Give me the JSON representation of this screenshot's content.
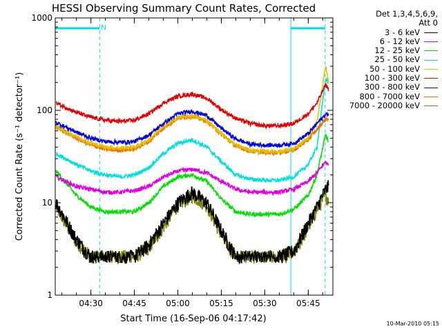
{
  "chart_data": {
    "type": "line",
    "title": "HESSI Observing Summary Count Rates, Corrected",
    "xlabel": "Start Time (16-Sep-06 04:17:42)",
    "ylabel": "Corrected Count Rate (s⁻¹ detector⁻¹)",
    "yscale": "log",
    "ylim": [
      1,
      1000
    ],
    "xlim": [
      "04:17:42",
      "05:53:30"
    ],
    "x_tick_labels": [
      "04:30",
      "04:45",
      "05:00",
      "05:15",
      "05:30",
      "05:45"
    ],
    "y_tick_labels": [
      "1",
      "10",
      "100",
      "1000"
    ],
    "legend_header": [
      "Det 1,3,4,5,6,9,",
      "Att 0"
    ],
    "legend_position": "right",
    "flag_label": "N",
    "night_intervals": [
      [
        "04:17:42",
        "04:33:00"
      ],
      [
        "05:39:00",
        "05:50:50"
      ]
    ],
    "series": [
      {
        "name": "3 - 6 keV",
        "color": "#000000",
        "x": [
          "04:18",
          "04:25",
          "04:30",
          "04:35",
          "04:40",
          "04:45",
          "04:50",
          "04:55",
          "05:00",
          "05:05",
          "05:10",
          "05:15",
          "05:20",
          "05:25",
          "05:30",
          "05:35",
          "05:40",
          "05:45",
          "05:48",
          "05:51",
          "05:52"
        ],
        "values": [
          10,
          4,
          2.6,
          2.6,
          2.6,
          2.6,
          3.5,
          6,
          10,
          13,
          10,
          5,
          2.6,
          2.6,
          2.6,
          2.6,
          3,
          6,
          9,
          14,
          15
        ]
      },
      {
        "name": "6 - 12 keV",
        "color": "#e000e0",
        "x": [
          "04:18",
          "04:25",
          "04:30",
          "04:35",
          "04:40",
          "04:45",
          "04:50",
          "04:55",
          "05:00",
          "05:05",
          "05:10",
          "05:15",
          "05:20",
          "05:25",
          "05:30",
          "05:35",
          "05:40",
          "05:45",
          "05:48",
          "05:51",
          "05:52"
        ],
        "values": [
          19,
          15,
          14,
          13,
          13,
          13.5,
          15,
          19,
          22,
          23,
          21,
          17,
          14,
          13,
          13,
          13,
          14,
          17,
          21,
          28,
          25
        ]
      },
      {
        "name": "12 - 25 keV",
        "color": "#00e000",
        "x": [
          "04:18",
          "04:25",
          "04:30",
          "04:35",
          "04:40",
          "04:45",
          "04:50",
          "04:55",
          "05:00",
          "05:05",
          "05:10",
          "05:15",
          "05:20",
          "05:25",
          "05:30",
          "05:35",
          "05:40",
          "05:45",
          "05:48",
          "05:51",
          "05:52"
        ],
        "values": [
          22,
          12,
          9,
          8,
          8,
          8,
          10,
          15,
          19,
          20,
          17,
          11,
          8,
          7.5,
          7.5,
          7.5,
          8.5,
          12,
          20,
          55,
          45
        ]
      },
      {
        "name": "25 - 50 keV",
        "color": "#00e0e0",
        "x": [
          "04:18",
          "04:25",
          "04:30",
          "04:35",
          "04:40",
          "04:45",
          "04:50",
          "04:55",
          "05:00",
          "05:05",
          "05:10",
          "05:15",
          "05:20",
          "05:25",
          "05:30",
          "05:35",
          "05:40",
          "05:45",
          "05:48",
          "05:51",
          "05:52"
        ],
        "values": [
          34,
          26,
          22,
          20,
          19,
          20,
          24,
          34,
          44,
          48,
          40,
          28,
          20,
          18,
          17.5,
          17.5,
          19,
          26,
          40,
          220,
          200
        ]
      },
      {
        "name": "50 - 100 keV",
        "color": "#e0c000",
        "x": [
          "04:18",
          "04:25",
          "04:30",
          "04:35",
          "04:40",
          "04:45",
          "04:50",
          "04:55",
          "05:00",
          "05:05",
          "05:10",
          "05:15",
          "05:20",
          "05:25",
          "05:30",
          "05:35",
          "05:40",
          "05:45",
          "05:48",
          "05:51",
          "05:52"
        ],
        "values": [
          66,
          52,
          44,
          40,
          39,
          40,
          48,
          66,
          84,
          88,
          78,
          56,
          42,
          37,
          36,
          36,
          38,
          50,
          75,
          300,
          200
        ]
      },
      {
        "name": "100 - 300 keV",
        "color": "#e00000",
        "x": [
          "04:18",
          "04:25",
          "04:30",
          "04:35",
          "04:40",
          "04:45",
          "04:50",
          "04:55",
          "05:00",
          "05:05",
          "05:10",
          "05:15",
          "05:20",
          "05:25",
          "05:30",
          "05:35",
          "05:40",
          "05:45",
          "05:48",
          "05:51",
          "05:52"
        ],
        "values": [
          120,
          95,
          84,
          78,
          76,
          78,
          92,
          120,
          142,
          150,
          135,
          102,
          82,
          72,
          68,
          68,
          72,
          92,
          120,
          190,
          170
        ]
      },
      {
        "name": "300 - 800 keV",
        "color": "#0000e0",
        "x": [
          "04:18",
          "04:25",
          "04:30",
          "04:35",
          "04:40",
          "04:45",
          "04:50",
          "04:55",
          "05:00",
          "05:05",
          "05:10",
          "05:15",
          "05:20",
          "05:25",
          "05:30",
          "05:35",
          "05:40",
          "05:45",
          "05:48",
          "05:51",
          "05:52"
        ],
        "values": [
          74,
          58,
          50,
          46,
          45,
          46,
          54,
          72,
          92,
          98,
          88,
          64,
          49,
          43,
          42,
          42,
          44,
          56,
          72,
          90,
          92
        ]
      },
      {
        "name": "800 - 7000 keV",
        "color": "#f07000",
        "x": [
          "04:18",
          "04:25",
          "04:30",
          "04:35",
          "04:40",
          "04:45",
          "04:50",
          "04:55",
          "05:00",
          "05:05",
          "05:10",
          "05:15",
          "05:20",
          "05:25",
          "05:30",
          "05:35",
          "05:40",
          "05:45",
          "05:48",
          "05:51",
          "05:52"
        ],
        "values": [
          66,
          50,
          42,
          38,
          37,
          38,
          46,
          64,
          82,
          86,
          76,
          55,
          41,
          36,
          35,
          35,
          37,
          48,
          62,
          80,
          82
        ]
      },
      {
        "name": "7000 - 20000 keV",
        "color": "#808000",
        "x": [
          "04:18",
          "04:25",
          "04:30",
          "04:35",
          "04:40",
          "04:45",
          "04:50",
          "04:55",
          "05:00",
          "05:05",
          "05:10",
          "05:15",
          "05:20",
          "05:25",
          "05:30",
          "05:35",
          "05:40",
          "05:45",
          "05:48",
          "05:51",
          "05:52"
        ],
        "values": [
          9,
          3.8,
          2.6,
          2.6,
          2.6,
          2.6,
          3.3,
          5.5,
          9.5,
          12,
          9.5,
          4.5,
          2.6,
          2.6,
          2.6,
          2.6,
          2.8,
          5.5,
          8.5,
          12,
          11
        ]
      }
    ]
  },
  "footer_timestamp": "10-Mar-2010 05:15"
}
